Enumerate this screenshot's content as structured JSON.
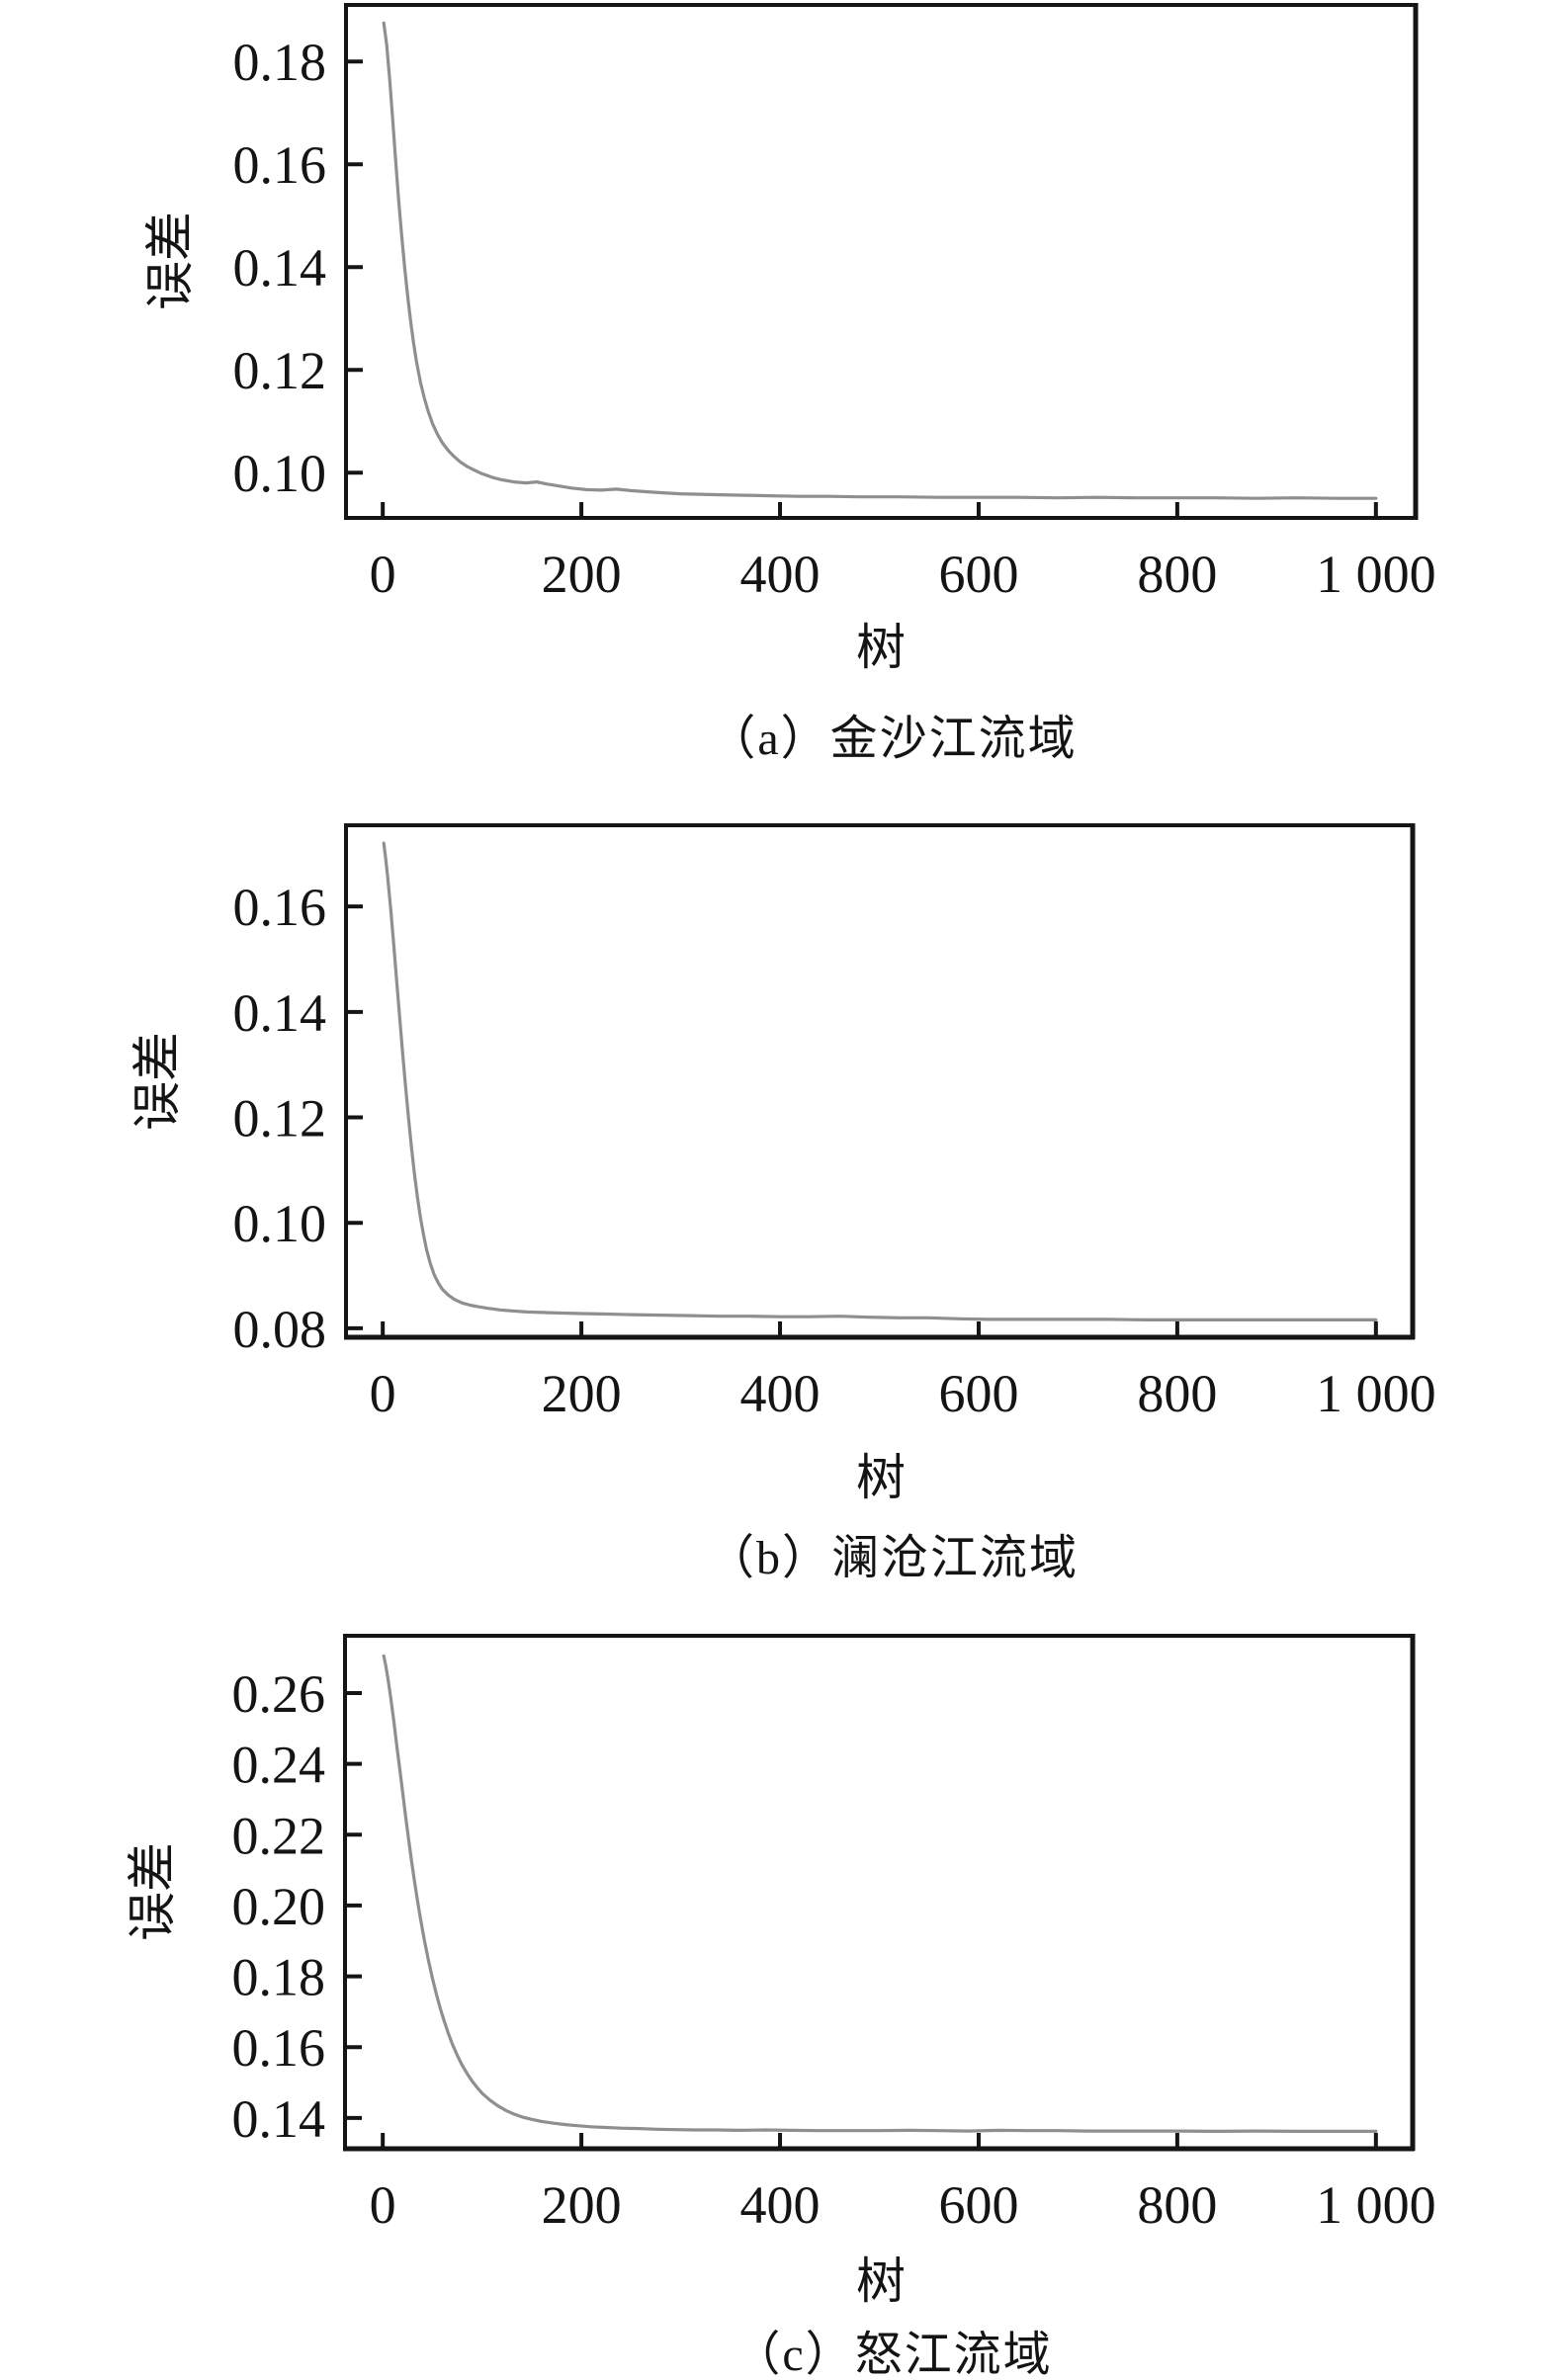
{
  "figure": {
    "background": "#ffffff",
    "axis_color": "#151515",
    "curve_color": "#8f8f8f"
  },
  "chart_data": [
    {
      "type": "line",
      "title": "（a）金沙江流域",
      "xlabel": "树",
      "ylabel": "误差",
      "legend": "none",
      "grid": false,
      "x_ticks": {
        "values": [
          0,
          200,
          400,
          600,
          800,
          1000
        ],
        "labels": [
          "0",
          "200",
          "400",
          "600",
          "800",
          "1 000"
        ]
      },
      "y_ticks": {
        "values": [
          0.18,
          0.16,
          0.14,
          0.12,
          0.1
        ],
        "labels": [
          "0.18",
          "0.16",
          "0.14",
          "0.12",
          "0.10"
        ]
      },
      "xlim": [
        -37,
        1040
      ],
      "ylim": [
        0.0912,
        0.191
      ],
      "series": [
        {
          "points": [
            [
              1,
              0.1875
            ],
            [
              4,
              0.1832
            ],
            [
              7,
              0.1765
            ],
            [
              10,
              0.1688
            ],
            [
              13,
              0.1608
            ],
            [
              16,
              0.1532
            ],
            [
              19,
              0.1462
            ],
            [
              22,
              0.14
            ],
            [
              25,
              0.1345
            ],
            [
              28,
              0.1296
            ],
            [
              31,
              0.1253
            ],
            [
              34,
              0.1216
            ],
            [
              38,
              0.1176
            ],
            [
              42,
              0.1144
            ],
            [
              46,
              0.1118
            ],
            [
              50,
              0.1096
            ],
            [
              55,
              0.1075
            ],
            [
              60,
              0.1058
            ],
            [
              66,
              0.1043
            ],
            [
              72,
              0.1031
            ],
            [
              78,
              0.1021
            ],
            [
              85,
              0.1012
            ],
            [
              92,
              0.1005
            ],
            [
              100,
              0.0998
            ],
            [
              110,
              0.0991
            ],
            [
              120,
              0.0986
            ],
            [
              132,
              0.0982
            ],
            [
              144,
              0.098
            ],
            [
              155,
              0.0982
            ],
            [
              165,
              0.0978
            ],
            [
              178,
              0.0974
            ],
            [
              190,
              0.097
            ],
            [
              205,
              0.0967
            ],
            [
              220,
              0.0966
            ],
            [
              235,
              0.0968
            ],
            [
              250,
              0.0965
            ],
            [
              265,
              0.0963
            ],
            [
              280,
              0.0961
            ],
            [
              300,
              0.0959
            ],
            [
              320,
              0.0958
            ],
            [
              340,
              0.0957
            ],
            [
              365,
              0.0956
            ],
            [
              390,
              0.0955
            ],
            [
              420,
              0.0954
            ],
            [
              450,
              0.0954
            ],
            [
              480,
              0.0953
            ],
            [
              520,
              0.0953
            ],
            [
              560,
              0.0952
            ],
            [
              600,
              0.0952
            ],
            [
              640,
              0.0952
            ],
            [
              680,
              0.0951
            ],
            [
              720,
              0.0952
            ],
            [
              760,
              0.0951
            ],
            [
              800,
              0.0951
            ],
            [
              840,
              0.0951
            ],
            [
              880,
              0.095
            ],
            [
              920,
              0.0951
            ],
            [
              960,
              0.095
            ],
            [
              1000,
              0.095
            ]
          ]
        }
      ]
    },
    {
      "type": "line",
      "title": "（b）澜沧江流域",
      "xlabel": "树",
      "ylabel": "误差",
      "legend": "none",
      "grid": false,
      "x_ticks": {
        "values": [
          0,
          200,
          400,
          600,
          800,
          1000
        ],
        "labels": [
          "0",
          "200",
          "400",
          "600",
          "800",
          "1 000"
        ]
      },
      "y_ticks": {
        "values": [
          0.16,
          0.14,
          0.12,
          0.1,
          0.08
        ],
        "labels": [
          "0.16",
          "0.14",
          "0.12",
          "0.10",
          "0.08"
        ]
      },
      "xlim": [
        -37,
        1037
      ],
      "ylim": [
        0.0783,
        0.1754
      ],
      "series": [
        {
          "points": [
            [
              1,
              0.172
            ],
            [
              3,
              0.169
            ],
            [
              5,
              0.1655
            ],
            [
              8,
              0.1596
            ],
            [
              11,
              0.153
            ],
            [
              14,
              0.146
            ],
            [
              17,
              0.139
            ],
            [
              20,
              0.1322
            ],
            [
              23,
              0.1258
            ],
            [
              26,
              0.1198
            ],
            [
              29,
              0.1142
            ],
            [
              32,
              0.1092
            ],
            [
              35,
              0.1048
            ],
            [
              38,
              0.101
            ],
            [
              41,
              0.0978
            ],
            [
              44,
              0.095
            ],
            [
              48,
              0.0922
            ],
            [
              52,
              0.0901
            ],
            [
              56,
              0.0886
            ],
            [
              60,
              0.0874
            ],
            [
              66,
              0.0863
            ],
            [
              72,
              0.0855
            ],
            [
              80,
              0.0848
            ],
            [
              88,
              0.0844
            ],
            [
              96,
              0.0841
            ],
            [
              106,
              0.0838
            ],
            [
              118,
              0.0835
            ],
            [
              130,
              0.0833
            ],
            [
              145,
              0.0831
            ],
            [
              160,
              0.083
            ],
            [
              180,
              0.0829
            ],
            [
              200,
              0.0828
            ],
            [
              225,
              0.0827
            ],
            [
              250,
              0.0826
            ],
            [
              280,
              0.0825
            ],
            [
              310,
              0.0824
            ],
            [
              340,
              0.0823
            ],
            [
              370,
              0.0823
            ],
            [
              400,
              0.0822
            ],
            [
              430,
              0.0822
            ],
            [
              460,
              0.0823
            ],
            [
              490,
              0.0821
            ],
            [
              520,
              0.082
            ],
            [
              550,
              0.082
            ],
            [
              580,
              0.0818
            ],
            [
              610,
              0.0817
            ],
            [
              650,
              0.0817
            ],
            [
              690,
              0.0817
            ],
            [
              730,
              0.0817
            ],
            [
              770,
              0.0816
            ],
            [
              810,
              0.0816
            ],
            [
              850,
              0.0816
            ],
            [
              890,
              0.0816
            ],
            [
              930,
              0.0816
            ],
            [
              970,
              0.0816
            ],
            [
              1000,
              0.0816
            ]
          ]
        }
      ]
    },
    {
      "type": "line",
      "title": "（c）怒江流域",
      "xlabel": "树",
      "ylabel": "误差",
      "legend": "none",
      "grid": false,
      "x_ticks": {
        "values": [
          0,
          200,
          400,
          600,
          800,
          1000
        ],
        "labels": [
          "0",
          "200",
          "400",
          "600",
          "800",
          "1 000"
        ]
      },
      "y_ticks": {
        "values": [
          0.26,
          0.24,
          0.22,
          0.2,
          0.18,
          0.16,
          0.14
        ],
        "labels": [
          "0.26",
          "0.24",
          "0.22",
          "0.20",
          "0.18",
          "0.16",
          "0.14"
        ]
      },
      "xlim": [
        -38,
        1037
      ],
      "ylim": [
        0.1313,
        0.2762
      ],
      "series": [
        {
          "points": [
            [
              1,
              0.2705
            ],
            [
              3,
              0.2678
            ],
            [
              5,
              0.2645
            ],
            [
              8,
              0.2588
            ],
            [
              11,
              0.2525
            ],
            [
              14,
              0.2455
            ],
            [
              17,
              0.2388
            ],
            [
              20,
              0.232
            ],
            [
              23,
              0.2252
            ],
            [
              26,
              0.2188
            ],
            [
              29,
              0.2126
            ],
            [
              32,
              0.2068
            ],
            [
              35,
              0.2014
            ],
            [
              38,
              0.1962
            ],
            [
              42,
              0.19
            ],
            [
              46,
              0.1845
            ],
            [
              50,
              0.1795
            ],
            [
              54,
              0.175
            ],
            [
              58,
              0.1709
            ],
            [
              62,
              0.1672
            ],
            [
              66,
              0.1639
            ],
            [
              70,
              0.1609
            ],
            [
              75,
              0.1577
            ],
            [
              80,
              0.1549
            ],
            [
              85,
              0.1525
            ],
            [
              90,
              0.1504
            ],
            [
              95,
              0.1486
            ],
            [
              100,
              0.147
            ],
            [
              108,
              0.145
            ],
            [
              116,
              0.1434
            ],
            [
              124,
              0.1421
            ],
            [
              132,
              0.1411
            ],
            [
              140,
              0.1403
            ],
            [
              150,
              0.1396
            ],
            [
              160,
              0.139
            ],
            [
              172,
              0.1385
            ],
            [
              184,
              0.1381
            ],
            [
              196,
              0.1378
            ],
            [
              210,
              0.1375
            ],
            [
              225,
              0.1373
            ],
            [
              240,
              0.1371
            ],
            [
              258,
              0.137
            ],
            [
              276,
              0.1368
            ],
            [
              295,
              0.1367
            ],
            [
              315,
              0.1366
            ],
            [
              335,
              0.1366
            ],
            [
              360,
              0.1365
            ],
            [
              385,
              0.1366
            ],
            [
              410,
              0.1365
            ],
            [
              440,
              0.1364
            ],
            [
              470,
              0.1364
            ],
            [
              500,
              0.1364
            ],
            [
              530,
              0.1365
            ],
            [
              560,
              0.1364
            ],
            [
              590,
              0.1363
            ],
            [
              620,
              0.1365
            ],
            [
              650,
              0.1364
            ],
            [
              680,
              0.1364
            ],
            [
              710,
              0.1363
            ],
            [
              740,
              0.1363
            ],
            [
              770,
              0.1363
            ],
            [
              800,
              0.1363
            ],
            [
              840,
              0.1362
            ],
            [
              880,
              0.1363
            ],
            [
              920,
              0.1362
            ],
            [
              960,
              0.1362
            ],
            [
              1000,
              0.1362
            ]
          ]
        }
      ]
    }
  ]
}
